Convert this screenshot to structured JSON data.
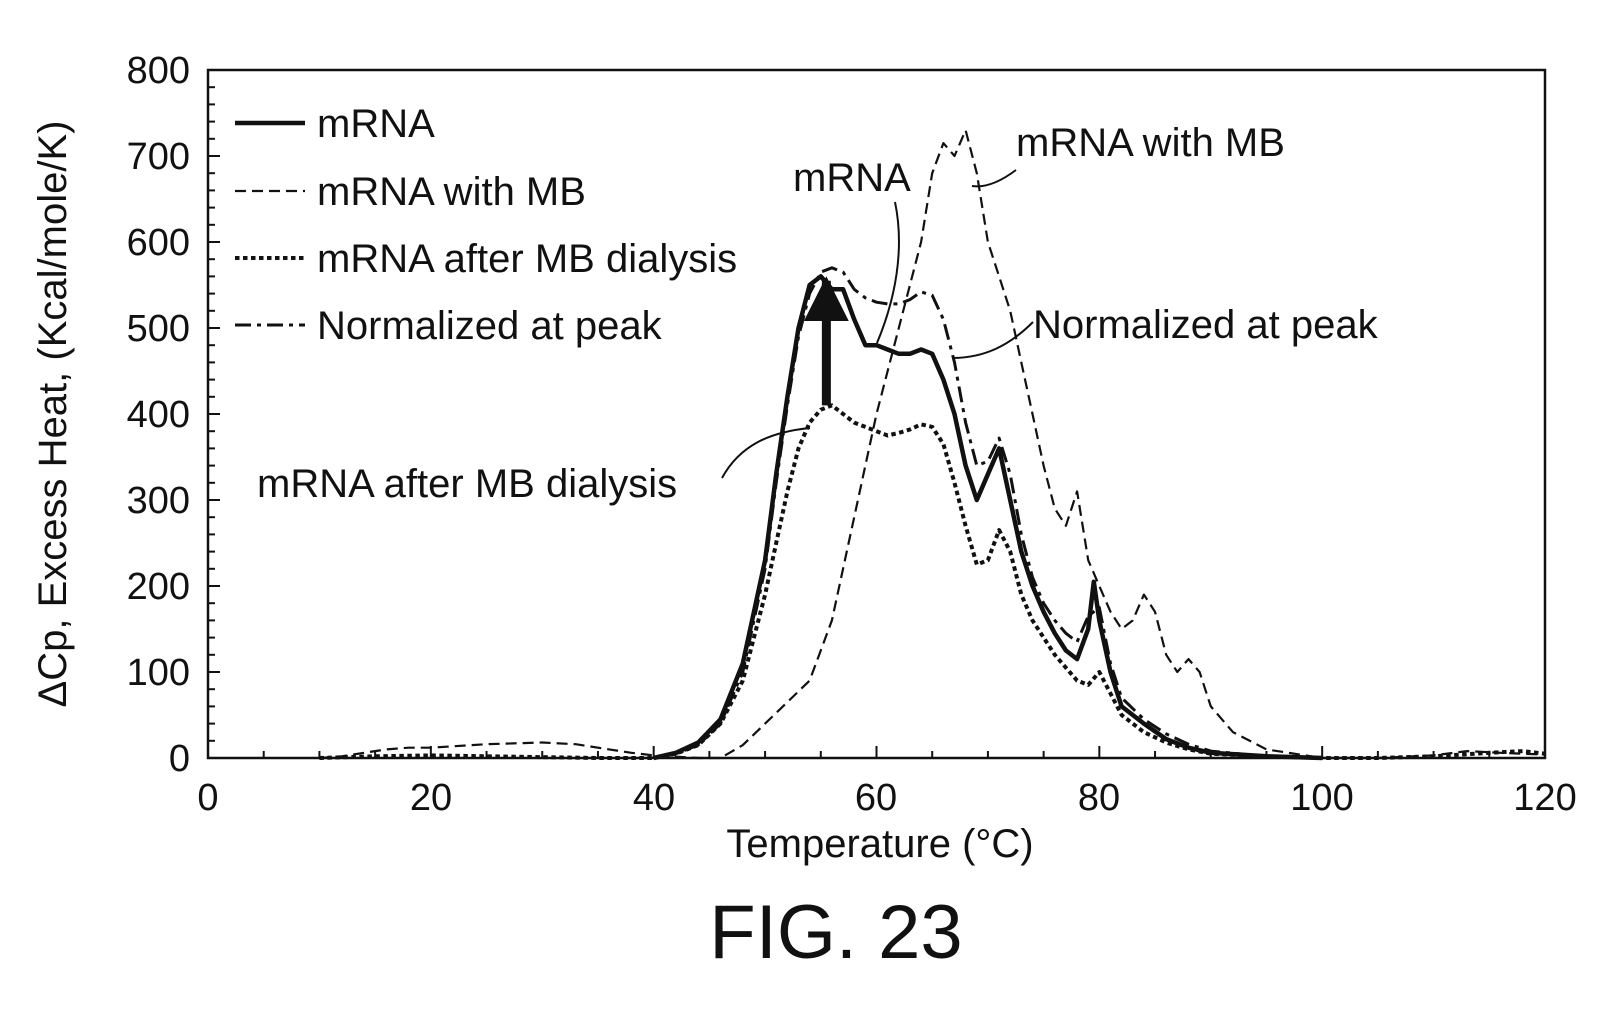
{
  "figure": {
    "caption": "FIG. 23"
  },
  "colors": {
    "ink": "#111111",
    "background": "#ffffff"
  },
  "chart_data": {
    "type": "line",
    "title": "",
    "xlabel": "Temperature (°C)",
    "ylabel": "ΔCp, Excess Heat, (Kcal/mole/K)",
    "xlim": [
      0,
      120
    ],
    "ylim": [
      0,
      800
    ],
    "x_ticks": [
      "0",
      "20",
      "40",
      "60",
      "80",
      "100",
      "120"
    ],
    "y_ticks": [
      "0",
      "100",
      "200",
      "300",
      "400",
      "500",
      "600",
      "700",
      "800"
    ],
    "grid": false,
    "legend_position": "top-left",
    "series": [
      {
        "name": "mRNA",
        "line_style": "solid",
        "points": [
          [
            40,
            0
          ],
          [
            42,
            6
          ],
          [
            44,
            18
          ],
          [
            46,
            45
          ],
          [
            48,
            110
          ],
          [
            50,
            230
          ],
          [
            51,
            330
          ],
          [
            52,
            420
          ],
          [
            53,
            500
          ],
          [
            54,
            550
          ],
          [
            55,
            560
          ],
          [
            56,
            545
          ],
          [
            57,
            545
          ],
          [
            58,
            510
          ],
          [
            59,
            480
          ],
          [
            60,
            480
          ],
          [
            61,
            475
          ],
          [
            62,
            470
          ],
          [
            63,
            470
          ],
          [
            64,
            475
          ],
          [
            65,
            470
          ],
          [
            66,
            440
          ],
          [
            67,
            400
          ],
          [
            68,
            340
          ],
          [
            69,
            300
          ],
          [
            70,
            330
          ],
          [
            71,
            360
          ],
          [
            72,
            300
          ],
          [
            73,
            240
          ],
          [
            74,
            200
          ],
          [
            75,
            170
          ],
          [
            76,
            145
          ],
          [
            77,
            125
          ],
          [
            78,
            115
          ],
          [
            79,
            150
          ],
          [
            79.5,
            205
          ],
          [
            80,
            160
          ],
          [
            81,
            100
          ],
          [
            82,
            60
          ],
          [
            84,
            40
          ],
          [
            86,
            22
          ],
          [
            88,
            12
          ],
          [
            90,
            6
          ],
          [
            95,
            2
          ],
          [
            100,
            0
          ]
        ]
      },
      {
        "name": "mRNA with MB",
        "line_style": "dashed",
        "points": [
          [
            10,
            0
          ],
          [
            12,
            2
          ],
          [
            14,
            6
          ],
          [
            16,
            10
          ],
          [
            18,
            12
          ],
          [
            20,
            12
          ],
          [
            25,
            16
          ],
          [
            30,
            18
          ],
          [
            33,
            16
          ],
          [
            36,
            10
          ],
          [
            38,
            6
          ],
          [
            40,
            3
          ],
          [
            44,
            0
          ],
          [
            46,
            0
          ],
          [
            48,
            15
          ],
          [
            50,
            40
          ],
          [
            52,
            65
          ],
          [
            54,
            90
          ],
          [
            56,
            160
          ],
          [
            58,
            280
          ],
          [
            60,
            400
          ],
          [
            62,
            500
          ],
          [
            64,
            600
          ],
          [
            65,
            680
          ],
          [
            66,
            715
          ],
          [
            67,
            700
          ],
          [
            68,
            730
          ],
          [
            69,
            680
          ],
          [
            70,
            600
          ],
          [
            71,
            560
          ],
          [
            72,
            520
          ],
          [
            73,
            460
          ],
          [
            74,
            400
          ],
          [
            75,
            340
          ],
          [
            76,
            290
          ],
          [
            77,
            270
          ],
          [
            78,
            310
          ],
          [
            79,
            230
          ],
          [
            80,
            200
          ],
          [
            81,
            170
          ],
          [
            82,
            150
          ],
          [
            83,
            160
          ],
          [
            84,
            190
          ],
          [
            85,
            170
          ],
          [
            86,
            120
          ],
          [
            87,
            100
          ],
          [
            88,
            115
          ],
          [
            89,
            100
          ],
          [
            90,
            60
          ],
          [
            92,
            30
          ],
          [
            95,
            10
          ],
          [
            100,
            0
          ],
          [
            105,
            0
          ],
          [
            110,
            3
          ],
          [
            113,
            8
          ],
          [
            116,
            6
          ],
          [
            120,
            4
          ]
        ]
      },
      {
        "name": "mRNA after MB dialysis",
        "line_style": "dotted",
        "points": [
          [
            10,
            0
          ],
          [
            15,
            2
          ],
          [
            20,
            3
          ],
          [
            25,
            2
          ],
          [
            30,
            1
          ],
          [
            35,
            0
          ],
          [
            40,
            0
          ],
          [
            42,
            5
          ],
          [
            44,
            15
          ],
          [
            46,
            40
          ],
          [
            48,
            90
          ],
          [
            50,
            190
          ],
          [
            51,
            250
          ],
          [
            52,
            310
          ],
          [
            53,
            360
          ],
          [
            54,
            390
          ],
          [
            55,
            405
          ],
          [
            56,
            410
          ],
          [
            57,
            400
          ],
          [
            58,
            390
          ],
          [
            59,
            385
          ],
          [
            60,
            380
          ],
          [
            61,
            375
          ],
          [
            62,
            378
          ],
          [
            63,
            382
          ],
          [
            64,
            388
          ],
          [
            65,
            385
          ],
          [
            66,
            365
          ],
          [
            67,
            320
          ],
          [
            68,
            270
          ],
          [
            69,
            225
          ],
          [
            70,
            230
          ],
          [
            71,
            265
          ],
          [
            72,
            240
          ],
          [
            73,
            190
          ],
          [
            74,
            160
          ],
          [
            75,
            140
          ],
          [
            76,
            120
          ],
          [
            77,
            105
          ],
          [
            78,
            90
          ],
          [
            79,
            85
          ],
          [
            80,
            100
          ],
          [
            81,
            75
          ],
          [
            82,
            50
          ],
          [
            84,
            30
          ],
          [
            86,
            18
          ],
          [
            88,
            10
          ],
          [
            90,
            5
          ],
          [
            95,
            2
          ],
          [
            100,
            0
          ],
          [
            105,
            0
          ],
          [
            110,
            2
          ],
          [
            115,
            6
          ],
          [
            118,
            8
          ],
          [
            120,
            5
          ]
        ]
      },
      {
        "name": "Normalized at peak",
        "line_style": "dashdot",
        "points": [
          [
            40,
            0
          ],
          [
            42,
            5
          ],
          [
            44,
            15
          ],
          [
            46,
            40
          ],
          [
            48,
            100
          ],
          [
            50,
            220
          ],
          [
            51,
            320
          ],
          [
            52,
            410
          ],
          [
            53,
            490
          ],
          [
            54,
            540
          ],
          [
            55,
            565
          ],
          [
            56,
            570
          ],
          [
            57,
            565
          ],
          [
            58,
            545
          ],
          [
            59,
            535
          ],
          [
            60,
            530
          ],
          [
            61,
            528
          ],
          [
            62,
            528
          ],
          [
            63,
            533
          ],
          [
            64,
            542
          ],
          [
            65,
            538
          ],
          [
            66,
            510
          ],
          [
            67,
            460
          ],
          [
            68,
            390
          ],
          [
            69,
            340
          ],
          [
            70,
            345
          ],
          [
            71,
            372
          ],
          [
            72,
            330
          ],
          [
            73,
            260
          ],
          [
            74,
            210
          ],
          [
            75,
            180
          ],
          [
            76,
            160
          ],
          [
            77,
            145
          ],
          [
            78,
            135
          ],
          [
            79,
            165
          ],
          [
            80,
            175
          ],
          [
            81,
            110
          ],
          [
            82,
            70
          ],
          [
            84,
            45
          ],
          [
            86,
            28
          ],
          [
            88,
            16
          ],
          [
            90,
            8
          ],
          [
            95,
            2
          ],
          [
            100,
            0
          ]
        ]
      }
    ],
    "annotations": [
      {
        "text": "mRNA",
        "target_series": "mRNA"
      },
      {
        "text": "mRNA with MB",
        "target_series": "mRNA with MB"
      },
      {
        "text": "Normalized at peak",
        "target_series": "Normalized at peak"
      },
      {
        "text": "mRNA after MB dialysis",
        "target_series": "mRNA after MB dialysis"
      }
    ],
    "arrow": {
      "x": 55.5,
      "from": 410,
      "to": 555
    }
  }
}
